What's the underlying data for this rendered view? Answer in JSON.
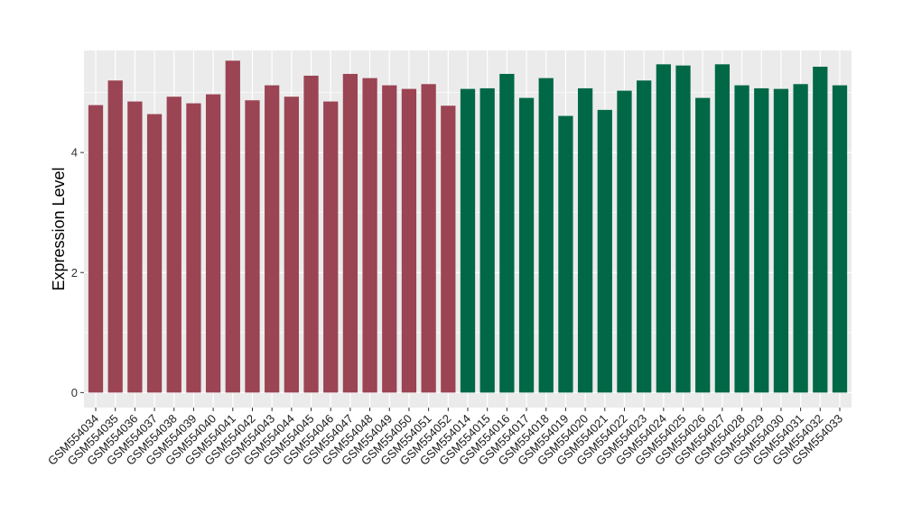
{
  "chart_data": {
    "type": "bar",
    "title": "",
    "xlabel": "",
    "ylabel": "Expression Level",
    "ylim": [
      -0.25,
      5.7
    ],
    "yticks": [
      0,
      2,
      4
    ],
    "grid": true,
    "legend": "none",
    "categories": [
      "GSM554034",
      "GSM554035",
      "GSM554036",
      "GSM554037",
      "GSM554038",
      "GSM554039",
      "GSM554040",
      "GSM554041",
      "GSM554042",
      "GSM554043",
      "GSM554044",
      "GSM554045",
      "GSM554046",
      "GSM554047",
      "GSM554048",
      "GSM554049",
      "GSM554050",
      "GSM554051",
      "GSM554052",
      "GSM554014",
      "GSM554015",
      "GSM554016",
      "GSM554017",
      "GSM554018",
      "GSM554019",
      "GSM554020",
      "GSM554021",
      "GSM554022",
      "GSM554023",
      "GSM554024",
      "GSM554025",
      "GSM554026",
      "GSM554027",
      "GSM554028",
      "GSM554029",
      "GSM554030",
      "GSM554031",
      "GSM554032",
      "GSM554033"
    ],
    "values": [
      4.79,
      5.2,
      4.85,
      4.64,
      4.93,
      4.82,
      4.97,
      5.53,
      4.87,
      5.12,
      4.93,
      5.28,
      4.85,
      5.31,
      5.24,
      5.12,
      5.06,
      5.14,
      4.78,
      5.06,
      5.07,
      5.31,
      4.91,
      5.24,
      4.61,
      5.07,
      4.71,
      5.03,
      5.2,
      5.47,
      5.45,
      4.91,
      5.47,
      5.12,
      5.07,
      5.06,
      5.14,
      5.43,
      5.12
    ],
    "group_sizes": [
      19,
      20
    ],
    "colors": {
      "group1": "#9b4453",
      "group2": "#006846",
      "panel_background": "#ebebeb",
      "gridline": "#ffffff"
    }
  }
}
